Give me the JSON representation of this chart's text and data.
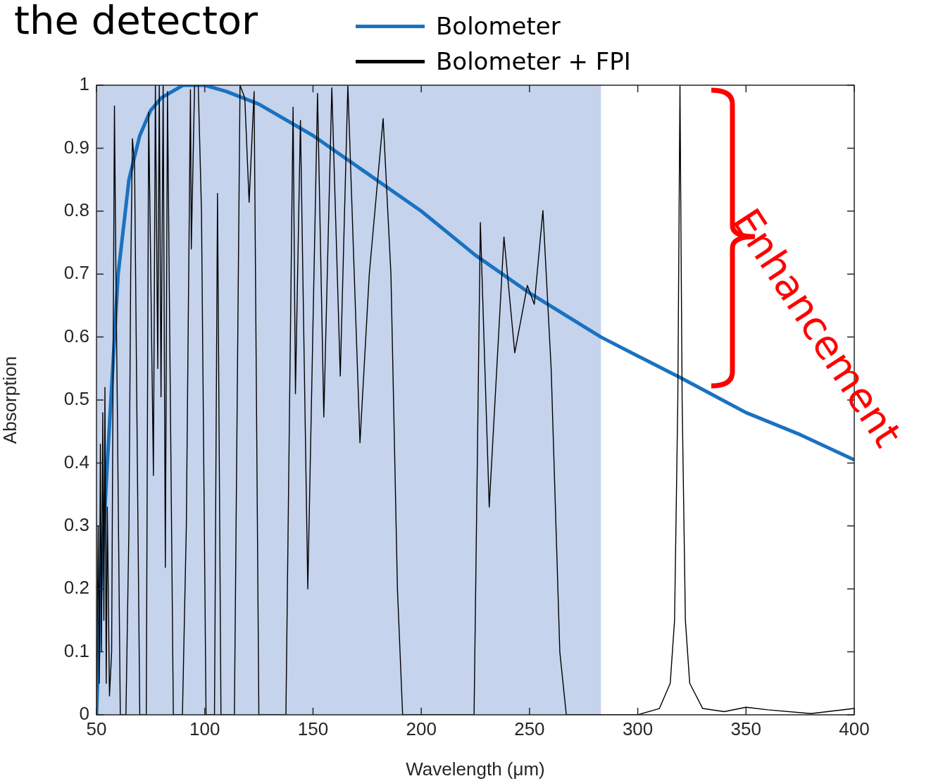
{
  "chart_data": {
    "type": "line",
    "title": "the detector",
    "xlabel": "Wavelength (μm)",
    "ylabel": "Absorption",
    "xlim": [
      50,
      400
    ],
    "ylim": [
      0,
      1
    ],
    "xticks": [
      50,
      100,
      150,
      200,
      250,
      300,
      350,
      400
    ],
    "yticks": [
      0,
      0.1,
      0.2,
      0.3,
      0.4,
      0.5,
      0.6,
      0.7,
      0.8,
      0.9,
      1
    ],
    "legend": "top",
    "bands": [
      {
        "axis": "x",
        "from": 50,
        "to": 283,
        "color": "#c5d3ec"
      }
    ],
    "annotations": [
      "Enhancement"
    ],
    "series": [
      {
        "name": "Bolometer",
        "color": "#1a72c0",
        "x": [
          50,
          52,
          55,
          58,
          60,
          65,
          70,
          75,
          80,
          90,
          100,
          110,
          125,
          150,
          175,
          200,
          225,
          250,
          283,
          300,
          320,
          350,
          375,
          400
        ],
        "values": [
          0,
          0.2,
          0.4,
          0.58,
          0.7,
          0.85,
          0.92,
          0.96,
          0.98,
          1.0,
          1.0,
          0.99,
          0.97,
          0.92,
          0.86,
          0.8,
          0.73,
          0.67,
          0.6,
          0.57,
          0.535,
          0.48,
          0.445,
          0.405
        ]
      },
      {
        "name": "Bolometer + FPI",
        "color": "#000000",
        "x": [
          50,
          50.8,
          51.3,
          51.8,
          52.3,
          52.9,
          53.4,
          53.9,
          54.5,
          55,
          56,
          57,
          58.3,
          59,
          59.6,
          61,
          63.6,
          65,
          65.8,
          66.6,
          67.6,
          68.8,
          70,
          73,
          74.1,
          76.3,
          77.2,
          78.3,
          79,
          79.8,
          80.8,
          81.8,
          82.8,
          83.9,
          85.5,
          89.7,
          91.5,
          93.4,
          93.8,
          95.3,
          97,
          98.5,
          100.6,
          104.5,
          105.9,
          107.5,
          113.7,
          116.3,
          118.5,
          120.5,
          122.8,
          125,
          137.5,
          140.8,
          141.9,
          144.2,
          147.6,
          152.1,
          155,
          158.7,
          162.6,
          166.1,
          171.7,
          176,
          182.4,
          186,
          189,
          191.4,
          224.4,
          227.3,
          231.4,
          238.2,
          243.2,
          249,
          252.2,
          256.2,
          260,
          264,
          267,
          300,
          310,
          315,
          317,
          318.5,
          319.5,
          320.5,
          322,
          324,
          330,
          340,
          350,
          360,
          380,
          400
        ],
        "values": [
          0,
          0.3,
          0.05,
          0.43,
          0.1,
          0.48,
          0.15,
          0.52,
          0.05,
          0.33,
          0.03,
          0.1,
          0.967,
          0.69,
          0.5,
          0,
          0,
          0.3,
          0.7,
          0.915,
          0.872,
          0.43,
          0,
          0,
          0.957,
          0.38,
          1,
          0.55,
          1,
          0.505,
          1,
          0.234,
          0.99,
          0.58,
          0,
          0,
          0.3,
          0.993,
          0.74,
          1,
          1,
          0.8,
          0,
          0,
          0.828,
          0,
          0,
          1,
          0.98,
          0.814,
          0.99,
          0,
          0,
          0.965,
          0.51,
          0.944,
          0.2,
          0.987,
          0.473,
          0.996,
          0.538,
          1,
          0.432,
          0.7,
          0.947,
          0.7,
          0.2,
          0,
          0,
          0.782,
          0.33,
          0.759,
          0.575,
          0.682,
          0.652,
          0.801,
          0.55,
          0.1,
          0,
          0,
          0.01,
          0.05,
          0.15,
          0.5,
          1,
          0.5,
          0.15,
          0.05,
          0.01,
          0.005,
          0.012,
          0.008,
          0.002,
          0.01
        ]
      }
    ]
  }
}
